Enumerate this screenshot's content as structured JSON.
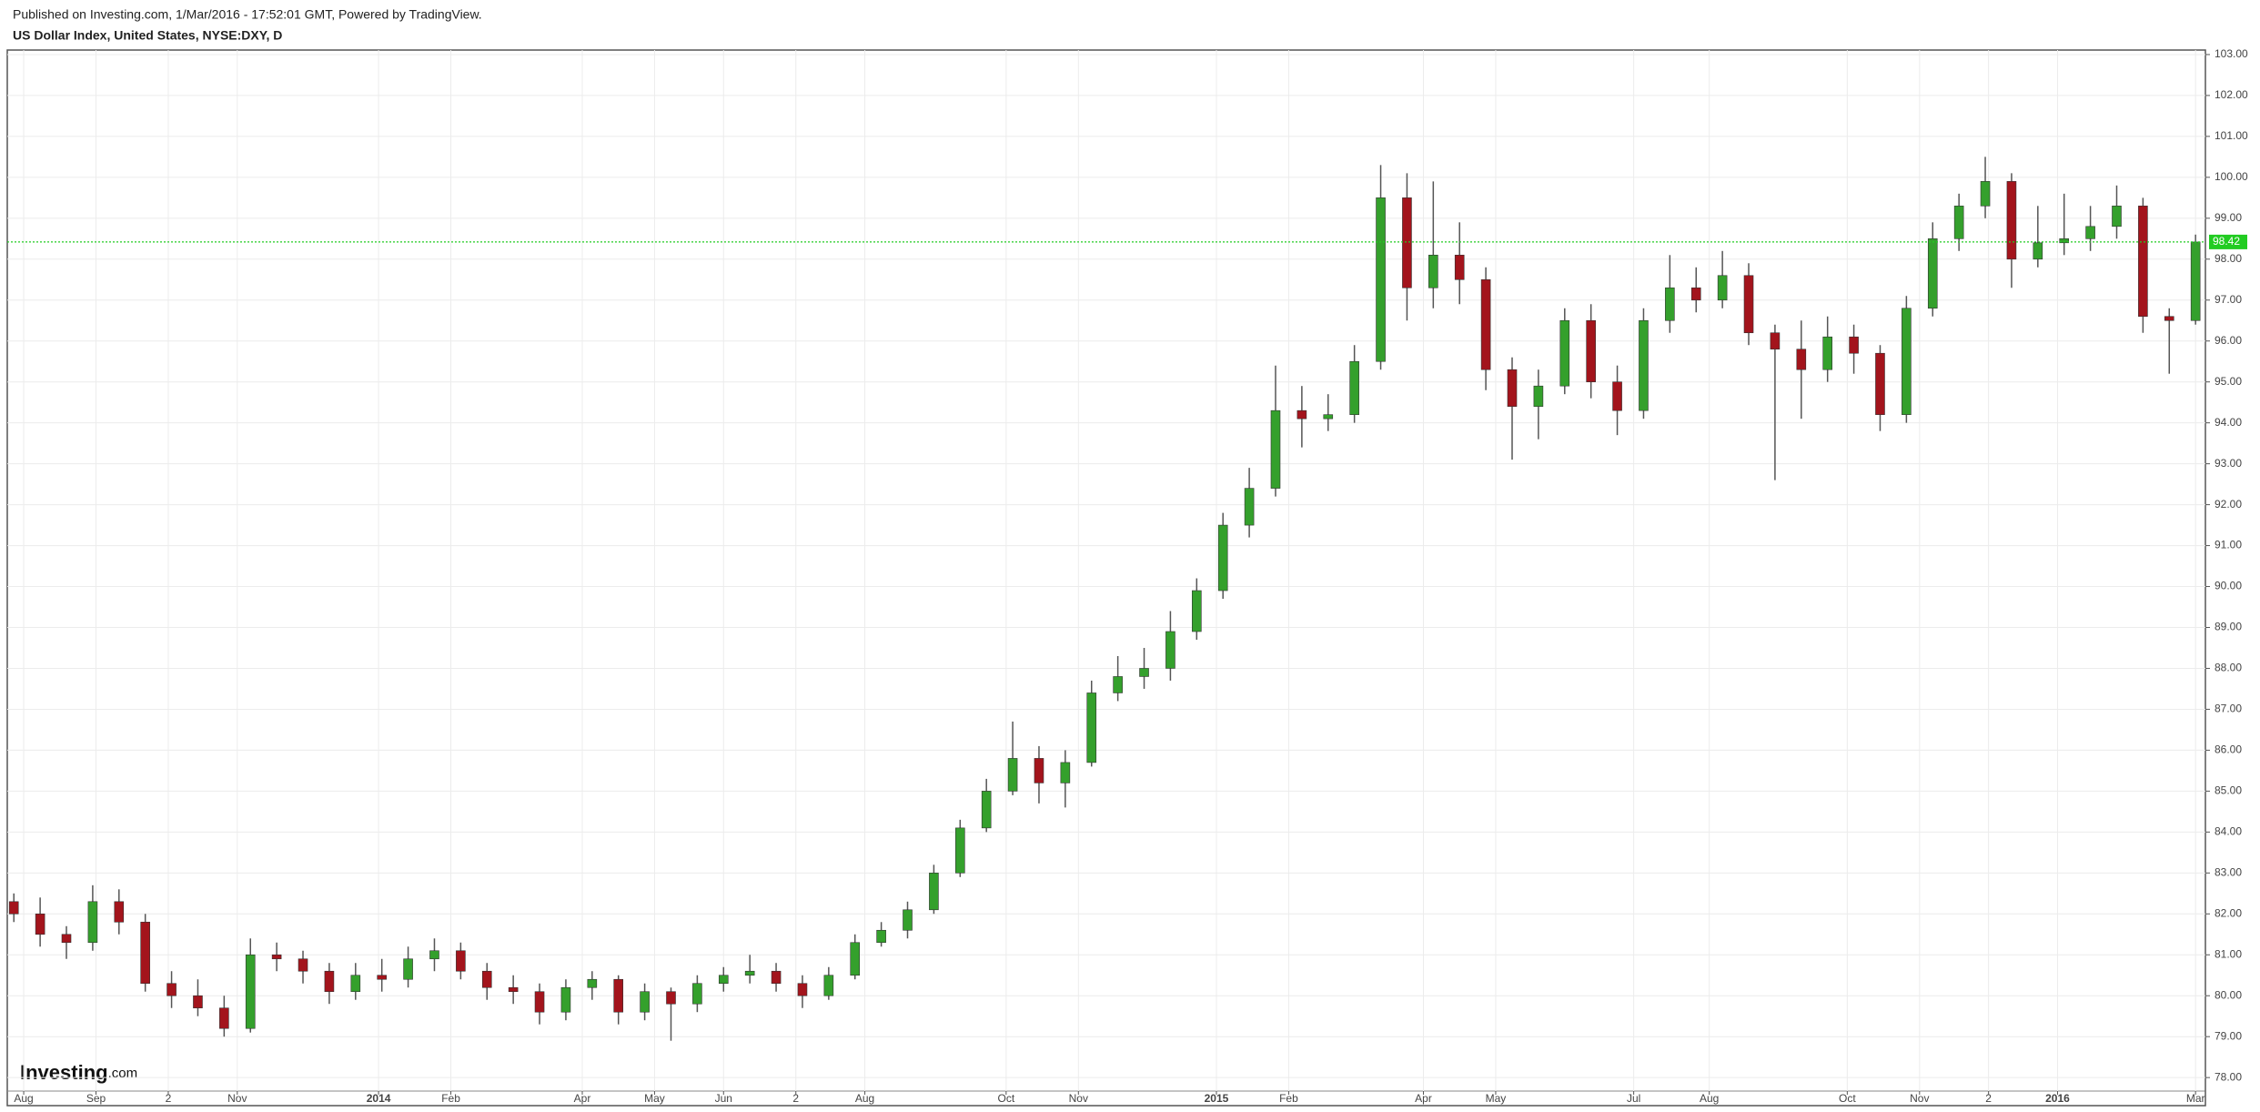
{
  "header": {
    "published": "Published on Investing.com, 1/Mar/2016 - 17:52:01 GMT, Powered by TradingView.",
    "title": "US Dollar Index, United States, NYSE:DXY, D"
  },
  "brand": {
    "name": "Investing",
    "suffix": ".com"
  },
  "chart_data": {
    "type": "candlestick",
    "up_color": "#34a02c",
    "down_color": "#a3141c",
    "grid": true,
    "last_price": 98.42,
    "last_price_color": "#22cc22",
    "xlim": [
      0,
      669
    ],
    "ylim": [
      77.67,
      103.11
    ],
    "xticks": [
      {
        "value": 5,
        "label": "Aug"
      },
      {
        "value": 27,
        "label": "Sep"
      },
      {
        "value": 49,
        "label": "2"
      },
      {
        "value": 70,
        "label": "Nov"
      },
      {
        "value": 113,
        "label": "2014"
      },
      {
        "value": 135,
        "label": "Feb"
      },
      {
        "value": 175,
        "label": "Apr"
      },
      {
        "value": 197,
        "label": "May"
      },
      {
        "value": 218,
        "label": "Jun"
      },
      {
        "value": 240,
        "label": "2"
      },
      {
        "value": 261,
        "label": "Aug"
      },
      {
        "value": 304,
        "label": "Oct"
      },
      {
        "value": 326,
        "label": "Nov"
      },
      {
        "value": 368,
        "label": "2015"
      },
      {
        "value": 390,
        "label": "Feb"
      },
      {
        "value": 431,
        "label": "Apr"
      },
      {
        "value": 453,
        "label": "May"
      },
      {
        "value": 495,
        "label": "Jul"
      },
      {
        "value": 518,
        "label": "Aug"
      },
      {
        "value": 560,
        "label": "Oct"
      },
      {
        "value": 582,
        "label": "Nov"
      },
      {
        "value": 603,
        "label": "2"
      },
      {
        "value": 624,
        "label": "2016"
      },
      {
        "value": 666,
        "label": "Mar"
      }
    ],
    "yticks": [
      {
        "value": 78,
        "label": "78.00"
      },
      {
        "value": 79,
        "label": "79.00"
      },
      {
        "value": 80,
        "label": "80.00"
      },
      {
        "value": 81,
        "label": "81.00"
      },
      {
        "value": 82,
        "label": "82.00"
      },
      {
        "value": 83,
        "label": "83.00"
      },
      {
        "value": 84,
        "label": "84.00"
      },
      {
        "value": 85,
        "label": "85.00"
      },
      {
        "value": 86,
        "label": "86.00"
      },
      {
        "value": 87,
        "label": "87.00"
      },
      {
        "value": 88,
        "label": "88.00"
      },
      {
        "value": 89,
        "label": "89.00"
      },
      {
        "value": 90,
        "label": "90.00"
      },
      {
        "value": 91,
        "label": "91.00"
      },
      {
        "value": 92,
        "label": "92.00"
      },
      {
        "value": 93,
        "label": "93.00"
      },
      {
        "value": 94,
        "label": "94.00"
      },
      {
        "value": 95,
        "label": "95.00"
      },
      {
        "value": 96,
        "label": "96.00"
      },
      {
        "value": 97,
        "label": "97.00"
      },
      {
        "value": 98,
        "label": "98.00"
      },
      {
        "value": 99,
        "label": "99.00"
      },
      {
        "value": 100,
        "label": "100.00"
      },
      {
        "value": 101,
        "label": "101.00"
      },
      {
        "value": 102,
        "label": "102.00"
      },
      {
        "value": 103,
        "label": "103.00"
      }
    ],
    "x": [
      2,
      10,
      18,
      26,
      34,
      42,
      50,
      58,
      66,
      74,
      82,
      90,
      98,
      106,
      114,
      122,
      130,
      138,
      146,
      154,
      162,
      170,
      178,
      186,
      194,
      202,
      210,
      218,
      226,
      234,
      242,
      250,
      258,
      266,
      274,
      282,
      290,
      298,
      306,
      314,
      322,
      330,
      338,
      346,
      354,
      362,
      370,
      378,
      386,
      394,
      402,
      410,
      418,
      426,
      434,
      442,
      450,
      458,
      466,
      474,
      482,
      490,
      498,
      506,
      514,
      522,
      530,
      538,
      546,
      554,
      562,
      570,
      578,
      586,
      594,
      602,
      610,
      618,
      626,
      634,
      642,
      650,
      658,
      666
    ],
    "open": [
      82.3,
      82.0,
      81.5,
      81.3,
      82.3,
      81.8,
      80.3,
      80.0,
      79.7,
      79.2,
      81.0,
      80.9,
      80.6,
      80.1,
      80.5,
      80.4,
      80.9,
      81.1,
      80.6,
      80.2,
      80.1,
      79.6,
      80.2,
      80.4,
      79.6,
      80.1,
      79.8,
      80.3,
      80.5,
      80.6,
      80.3,
      80.0,
      80.5,
      81.3,
      81.6,
      82.1,
      83.0,
      84.1,
      85.0,
      85.8,
      85.2,
      85.7,
      87.4,
      87.8,
      88.0,
      88.9,
      89.9,
      91.5,
      92.4,
      94.3,
      94.1,
      94.2,
      95.5,
      99.5,
      97.3,
      98.1,
      97.5,
      95.3,
      94.4,
      94.9,
      96.5,
      95.0,
      94.3,
      96.5,
      97.3,
      97.0,
      97.6,
      96.2,
      95.8,
      95.3,
      96.1,
      95.7,
      94.2,
      96.8,
      98.5,
      99.3,
      99.9,
      98.0,
      98.4,
      98.5,
      98.8,
      99.3,
      96.6,
      96.5
    ],
    "high": [
      82.5,
      82.4,
      81.7,
      82.7,
      82.6,
      82.0,
      80.6,
      80.4,
      80.0,
      81.4,
      81.3,
      81.1,
      80.8,
      80.8,
      80.9,
      81.2,
      81.4,
      81.3,
      80.8,
      80.5,
      80.3,
      80.4,
      80.6,
      80.5,
      80.3,
      80.2,
      80.5,
      80.7,
      81.0,
      80.8,
      80.5,
      80.7,
      81.5,
      81.8,
      82.3,
      83.2,
      84.3,
      85.3,
      86.7,
      86.1,
      86.0,
      87.7,
      88.3,
      88.5,
      89.4,
      90.2,
      91.8,
      92.9,
      95.4,
      94.9,
      94.7,
      95.9,
      100.3,
      100.1,
      99.9,
      98.9,
      97.8,
      95.6,
      95.3,
      96.8,
      96.9,
      95.4,
      96.8,
      98.1,
      97.8,
      98.2,
      97.9,
      96.4,
      96.5,
      96.6,
      96.4,
      95.9,
      97.1,
      98.9,
      99.6,
      100.5,
      100.1,
      99.3,
      99.6,
      99.3,
      99.8,
      99.5,
      96.8,
      98.6
    ],
    "low": [
      81.8,
      81.2,
      80.9,
      81.1,
      81.5,
      80.1,
      79.7,
      79.5,
      79.0,
      79.1,
      80.6,
      80.3,
      79.8,
      79.9,
      80.1,
      80.2,
      80.6,
      80.4,
      79.9,
      79.8,
      79.3,
      79.4,
      79.9,
      79.3,
      79.4,
      78.9,
      79.6,
      80.1,
      80.3,
      80.1,
      79.7,
      79.9,
      80.4,
      81.2,
      81.4,
      82.0,
      82.9,
      84.0,
      84.9,
      84.7,
      84.6,
      85.6,
      87.2,
      87.5,
      87.7,
      88.7,
      89.7,
      91.2,
      92.2,
      93.4,
      93.8,
      94.0,
      95.3,
      96.5,
      96.8,
      96.9,
      94.8,
      93.1,
      93.6,
      94.7,
      94.6,
      93.7,
      94.1,
      96.2,
      96.7,
      96.8,
      95.9,
      92.6,
      94.1,
      95.0,
      95.2,
      93.8,
      94.0,
      96.6,
      98.2,
      99.0,
      97.3,
      97.8,
      98.1,
      98.2,
      98.5,
      96.2,
      95.2,
      96.4
    ],
    "close": [
      82.0,
      81.5,
      81.3,
      82.3,
      81.8,
      80.3,
      80.0,
      79.7,
      79.2,
      81.0,
      80.9,
      80.6,
      80.1,
      80.5,
      80.4,
      80.9,
      81.1,
      80.6,
      80.2,
      80.1,
      79.6,
      80.2,
      80.4,
      79.6,
      80.1,
      79.8,
      80.3,
      80.5,
      80.6,
      80.3,
      80.0,
      80.5,
      81.3,
      81.6,
      82.1,
      83.0,
      84.1,
      85.0,
      85.8,
      85.2,
      85.7,
      87.4,
      87.8,
      88.0,
      88.9,
      89.9,
      91.5,
      92.4,
      94.3,
      94.1,
      94.2,
      95.5,
      99.5,
      97.3,
      98.1,
      97.5,
      95.3,
      94.4,
      94.9,
      96.5,
      95.0,
      94.3,
      96.5,
      97.3,
      97.0,
      97.6,
      96.2,
      95.8,
      95.3,
      96.1,
      95.7,
      94.2,
      96.8,
      98.5,
      99.3,
      99.9,
      98.0,
      98.4,
      98.5,
      98.8,
      99.3,
      96.6,
      96.5,
      98.42
    ]
  }
}
